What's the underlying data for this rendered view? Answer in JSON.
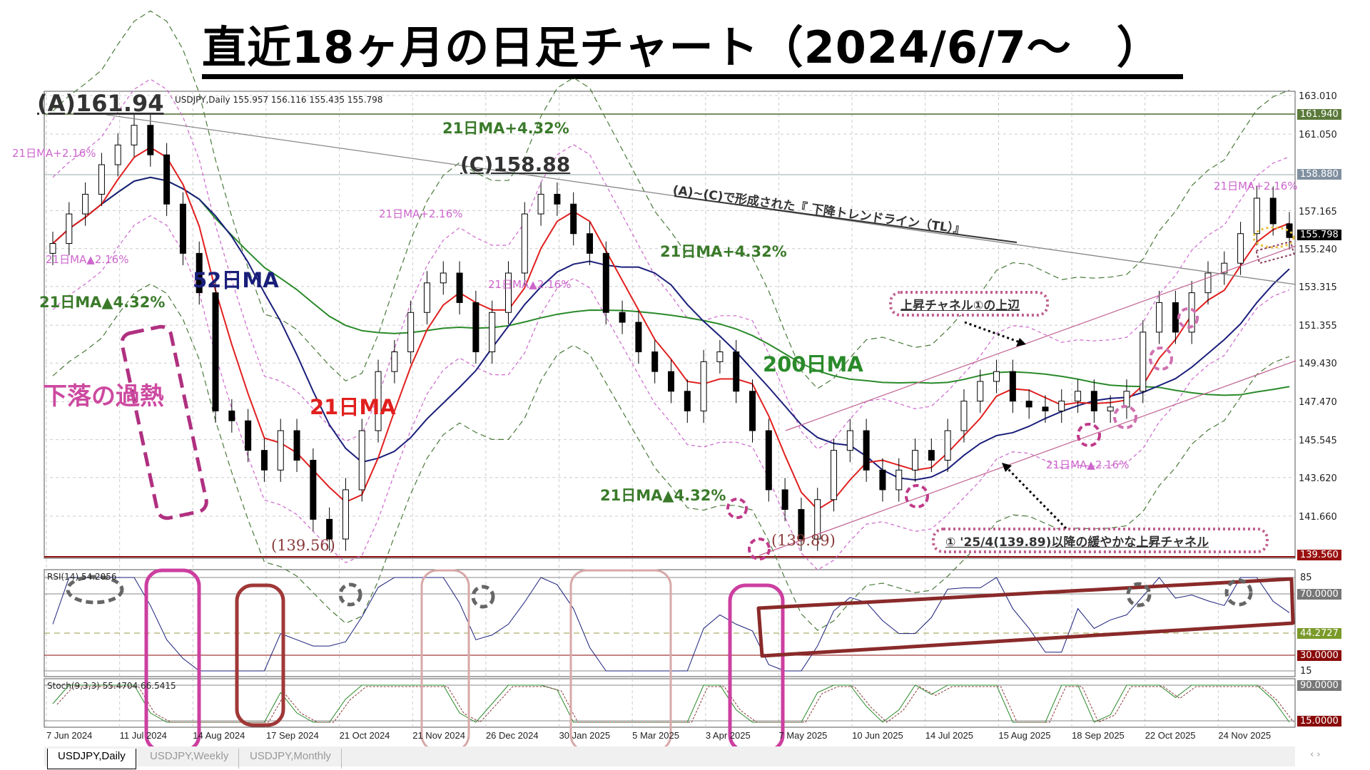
{
  "title": "直近18ヶ月の日足チャート（2024/6/7～　）",
  "chart_header": "USDJPY,Daily 155.957 156.116 155.435 155.798",
  "rsi_label": "RSI(14) 54.2056",
  "stoch_label": "Stoch(9,3,3) 55.4704 66.5415",
  "tabs": [
    "USDJPY,Daily",
    "USDJPY,Weekly",
    "USDJPY,Monthly"
  ],
  "colors": {
    "candle": "#000000",
    "ma21": "#e0201f",
    "ma52": "#1a1f7a",
    "ma200": "#2a8a2a",
    "band216": "#cc66cc",
    "band432": "#4a7a3a",
    "rsi": "#1a1f7a",
    "annot_pink": "#c0408a",
    "annot_red": "#9a3030"
  },
  "chart_data": {
    "type": "candlestick",
    "symbol": "USDJPY",
    "timeframe": "Daily",
    "ylim": [
      139.0,
      163.5
    ],
    "y_ticks": [
      "163.010",
      "161.050",
      "157.165",
      "155.240",
      "153.315",
      "151.355",
      "149.430",
      "147.470",
      "145.545",
      "143.620",
      "141.660"
    ],
    "price_tags": [
      {
        "value": "161.940",
        "color": "#5a7a3a"
      },
      {
        "value": "158.880",
        "color": "#8090a0"
      },
      {
        "value": "155.798",
        "color": "#000000"
      },
      {
        "value": "139.560",
        "color": "#9a1010"
      }
    ],
    "x_labels": [
      "7 Jun 2024",
      "11 Jul 2024",
      "14 Aug 2024",
      "17 Sep 2024",
      "21 Oct 2024",
      "21 Nov 2024",
      "26 Dec 2024",
      "30 Jan 2025",
      "5 Mar 2025",
      "3 Apr 2025",
      "7 May 2025",
      "10 Jun 2025",
      "14 Jul 2025",
      "15 Aug 2025",
      "18 Sep 2025",
      "22 Oct 2025",
      "24 Nov 2025"
    ],
    "approx_weekly_closes": [
      155.5,
      157,
      158,
      159.5,
      160.5,
      161.5,
      160,
      157.5,
      155,
      153,
      147,
      146.5,
      145,
      144,
      146,
      144.5,
      141.5,
      140.5,
      143,
      146,
      149,
      150,
      152,
      153.5,
      154,
      152.5,
      150,
      152,
      154,
      157,
      158,
      157.5,
      156,
      155,
      152,
      151.5,
      150,
      149,
      148,
      147,
      149.5,
      150,
      148,
      146,
      143,
      142,
      140.5,
      142.5,
      145,
      146,
      144,
      143,
      144,
      145,
      144.5,
      146,
      147.5,
      148.5,
      149,
      147.5,
      147.2,
      147,
      147.5,
      148,
      147,
      147.2,
      148,
      151,
      152.5,
      151,
      153,
      154,
      154.5,
      156,
      157.8,
      156.5,
      155.8
    ],
    "rsi_levels": [
      "85",
      "70.0000",
      "44.2727",
      "30.0000",
      "15"
    ],
    "stoch_levels": [
      "90.0000",
      "15.0000"
    ]
  },
  "annotations": {
    "a_high": "(A)161.94",
    "c_high": "(C)158.88",
    "low1": "(139.56)",
    "low2": "(139.89)",
    "ma21": "21日MA",
    "ma52": "52日MA",
    "ma200": "200日MA",
    "overheat": "下落の過熱",
    "b1": "21日MA+2.16%",
    "b2": "21日MA▲2.16%",
    "b3": "21日MA▲4.32%",
    "b4": "21日MA+4.32%",
    "b5": "21日MA+2.16%",
    "b6": "21日MA▲2.16%",
    "b7": "21日MA+4.32%",
    "b8": "21日MA▲4.32%",
    "b9": "21日MA+2.16%",
    "b10": "21日MA▲2.16%",
    "trendline": "(A)~(C)で形成された『 下降トレンドライン（TL）』",
    "channel_upper": "上昇チャネル①の上辺",
    "channel": "① '25/4(139.89)以降の緩やかな上昇チャネル"
  }
}
